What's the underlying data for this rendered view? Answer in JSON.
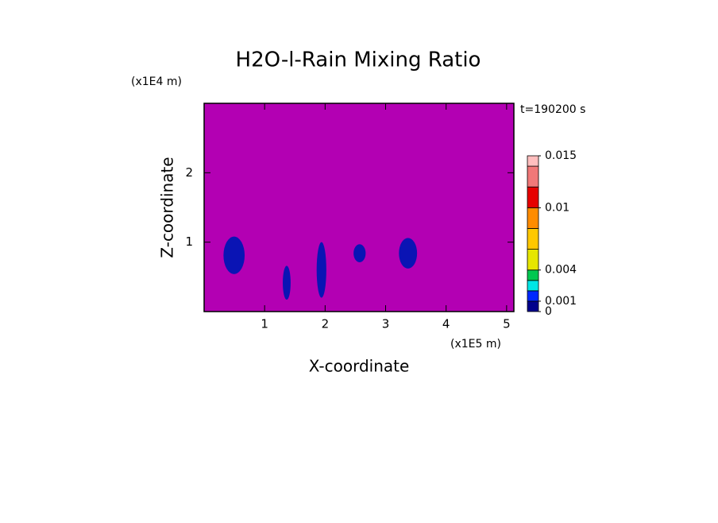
{
  "chart_data": {
    "type": "contour",
    "title": "H2O-l-Rain Mixing Ratio",
    "x_label": "X-coordinate",
    "y_label": "Z-coordinate",
    "x_unit": "(x1E5 m)",
    "y_unit": "(x1E4 m)",
    "annotation": "t=190200 s",
    "xlim": [
      0,
      5.12
    ],
    "ylim": [
      0,
      3
    ],
    "xticks": [
      1,
      2,
      3,
      4,
      5
    ],
    "yticks": [
      1,
      2
    ],
    "background_color": "#b300b3",
    "regions": [
      {
        "x": [
          0.32,
          0.67
        ],
        "y": [
          0.54,
          1.08
        ],
        "color": "#0a14b4"
      },
      {
        "x": [
          1.3,
          1.43
        ],
        "y": [
          0.17,
          0.66
        ],
        "color": "#0a14b4"
      },
      {
        "x": [
          1.86,
          2.02
        ],
        "y": [
          0.2,
          1.0
        ],
        "color": "#0a14b4"
      },
      {
        "x": [
          2.47,
          2.67
        ],
        "y": [
          0.71,
          0.97
        ],
        "color": "#0a14b4"
      },
      {
        "x": [
          3.22,
          3.52
        ],
        "y": [
          0.62,
          1.06
        ],
        "color": "#0a14b4"
      }
    ],
    "clim": [
      0,
      0.015
    ],
    "levels": [
      0,
      0.001,
      0.002,
      0.003,
      0.004,
      0.006,
      0.008,
      0.01,
      0.012,
      0.014,
      0.015
    ],
    "level_colors": [
      "#00008c",
      "#0028ff",
      "#00e6e6",
      "#00c850",
      "#e6e600",
      "#ffc800",
      "#ff8c00",
      "#e60000",
      "#f07878",
      "#ffbebe"
    ],
    "cticks": [
      0,
      0.001,
      0.004,
      0.01,
      0.015
    ]
  }
}
